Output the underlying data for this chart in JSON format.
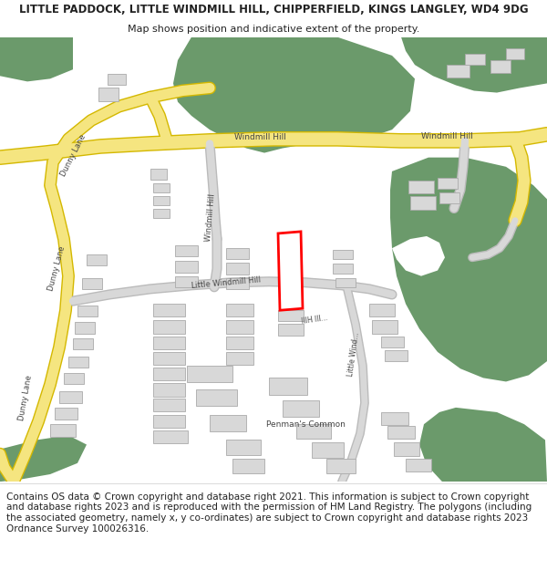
{
  "title_line1": "LITTLE PADDOCK, LITTLE WINDMILL HILL, CHIPPERFIELD, KINGS LANGLEY, WD4 9DG",
  "title_line2": "Map shows position and indicative extent of the property.",
  "footer_text": "Contains OS data © Crown copyright and database right 2021. This information is subject to Crown copyright and database rights 2023 and is reproduced with the permission of HM Land Registry. The polygons (including the associated geometry, namely x, y co-ordinates) are subject to Crown copyright and database rights 2023 Ordnance Survey 100026316.",
  "bg_color": "#ffffff",
  "map_bg": "#ffffff",
  "green_color": "#6b9a6b",
  "road_yellow": "#f5e580",
  "road_yellow_border": "#d4b800",
  "road_gray": "#d8d8d8",
  "road_gray_border": "#bbbbbb",
  "building_color": "#d8d8d8",
  "building_border": "#aaaaaa",
  "property_border": "#ff0000",
  "property_fill": "#ffffff",
  "text_color": "#222222",
  "road_label_color": "#555555",
  "footer_fontsize": 7.5,
  "title_fontsize": 8.5,
  "subtitle_fontsize": 8.0
}
